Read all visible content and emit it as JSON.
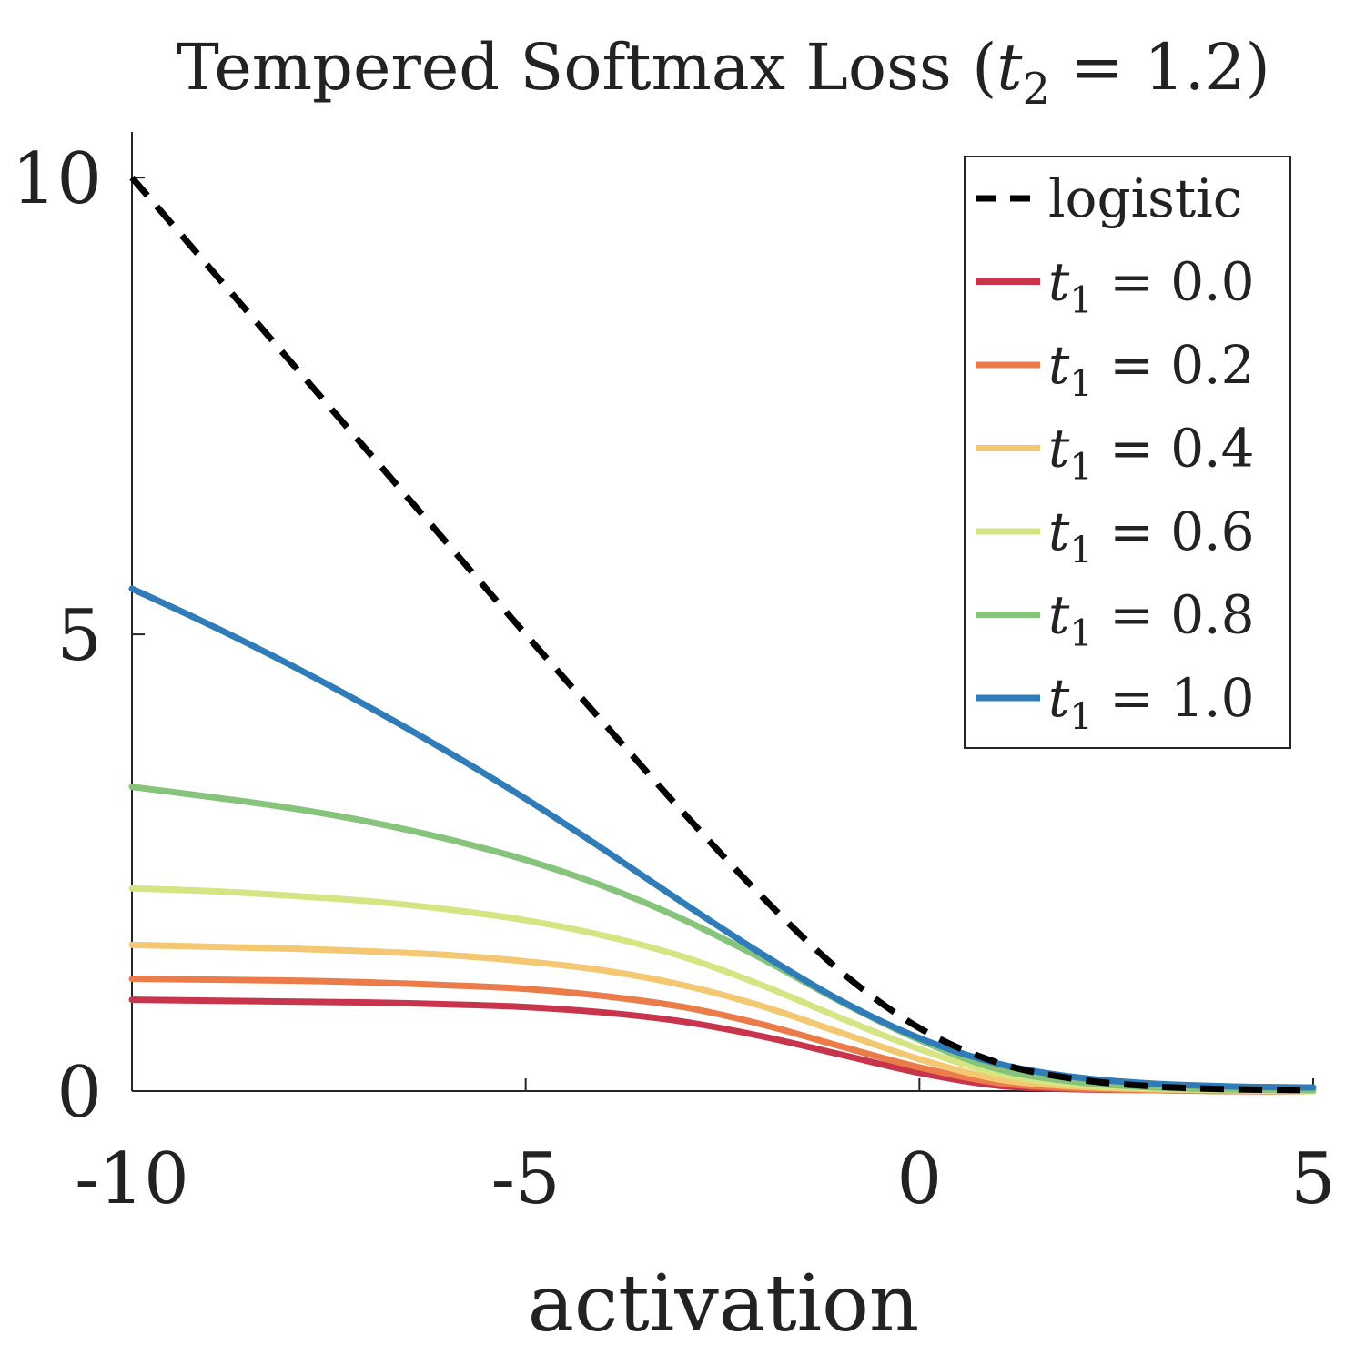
{
  "chart_data": {
    "type": "line",
    "title": {
      "prefix": "Tempered Softmax Loss (",
      "var": "t",
      "sub": "2",
      "suffix": " = 1.2)"
    },
    "xlabel": "activation",
    "ylabel": "",
    "xlim": [
      -10,
      5
    ],
    "ylim": [
      0,
      10.5
    ],
    "xticks": [
      -10,
      -5,
      0,
      5
    ],
    "xtick_labels": [
      "-10",
      "-5",
      "0",
      "5"
    ],
    "yticks": [
      0,
      5,
      10
    ],
    "ytick_labels": [
      "0",
      "5",
      "10"
    ],
    "grid": false,
    "legend_position": "top-right",
    "x": [
      -10,
      -9,
      -8,
      -7,
      -6,
      -5,
      -4,
      -3,
      -2,
      -1,
      0,
      1,
      2,
      3,
      4,
      5
    ],
    "series": [
      {
        "name": "logistic",
        "label": {
          "text": "logistic"
        },
        "color": "#000000",
        "dashed": true,
        "values": [
          10.0,
          9.0,
          8.0,
          7.0,
          6.0,
          5.0,
          4.02,
          3.05,
          2.13,
          1.31,
          0.69,
          0.31,
          0.13,
          0.05,
          0.02,
          0.01
        ]
      },
      {
        "name": "t1 = 0.0",
        "label": {
          "var": "t",
          "sub": "1",
          "rest": " = 0.0"
        },
        "color": "#c8344b",
        "dashed": false,
        "values": [
          1.0,
          0.99,
          0.98,
          0.97,
          0.95,
          0.92,
          0.86,
          0.76,
          0.6,
          0.4,
          0.2,
          0.06,
          0.02,
          0.01,
          0.0,
          0.0
        ]
      },
      {
        "name": "t1 = 0.2",
        "label": {
          "var": "t",
          "sub": "1",
          "rest": " = 0.2"
        },
        "color": "#ec7b4a",
        "dashed": false,
        "values": [
          1.23,
          1.22,
          1.21,
          1.19,
          1.16,
          1.12,
          1.04,
          0.92,
          0.73,
          0.49,
          0.26,
          0.09,
          0.03,
          0.01,
          0.0,
          0.0
        ]
      },
      {
        "name": "t1 = 0.4",
        "label": {
          "var": "t",
          "sub": "1",
          "rest": " = 0.4"
        },
        "color": "#f4c872",
        "dashed": false,
        "values": [
          1.6,
          1.58,
          1.56,
          1.53,
          1.49,
          1.42,
          1.32,
          1.16,
          0.93,
          0.64,
          0.35,
          0.13,
          0.05,
          0.02,
          0.01,
          0.0
        ]
      },
      {
        "name": "t1 = 0.6",
        "label": {
          "var": "t",
          "sub": "1",
          "rest": " = 0.6"
        },
        "color": "#d5e584",
        "dashed": false,
        "values": [
          2.22,
          2.19,
          2.14,
          2.08,
          1.99,
          1.87,
          1.7,
          1.47,
          1.16,
          0.8,
          0.46,
          0.19,
          0.07,
          0.03,
          0.01,
          0.0
        ]
      },
      {
        "name": "t1 = 0.8",
        "label": {
          "var": "t",
          "sub": "1",
          "rest": " = 0.8"
        },
        "color": "#85c47a",
        "dashed": false,
        "values": [
          3.33,
          3.22,
          3.1,
          2.95,
          2.76,
          2.53,
          2.24,
          1.88,
          1.45,
          0.98,
          0.56,
          0.24,
          0.1,
          0.04,
          0.02,
          0.01
        ]
      },
      {
        "name": "t1 = 1.0",
        "label": {
          "var": "t",
          "sub": "1",
          "rest": " = 1.0"
        },
        "color": "#2f7cb8",
        "dashed": false,
        "values": [
          5.5,
          5.1,
          4.67,
          4.21,
          3.72,
          3.2,
          2.64,
          2.06,
          1.5,
          0.99,
          0.58,
          0.3,
          0.15,
          0.08,
          0.05,
          0.04
        ]
      }
    ]
  }
}
